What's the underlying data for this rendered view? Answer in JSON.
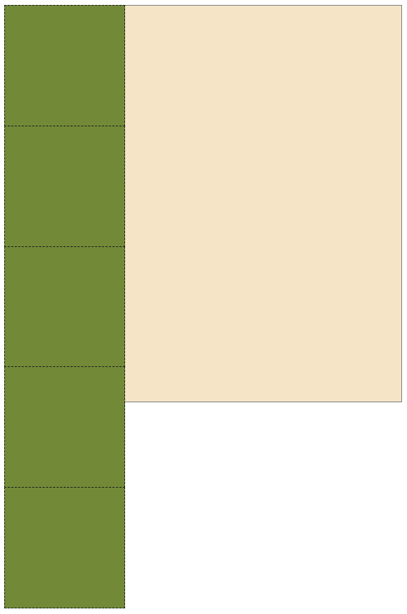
{
  "colors": {
    "background": "#ffffff",
    "panel_fill": "#f5e4c6",
    "tile_fill": "#728a38",
    "tile_border": "#1a1a1a"
  },
  "tiles": [
    {
      "id": 1
    },
    {
      "id": 2
    },
    {
      "id": 3
    },
    {
      "id": 4
    },
    {
      "id": 5
    }
  ]
}
